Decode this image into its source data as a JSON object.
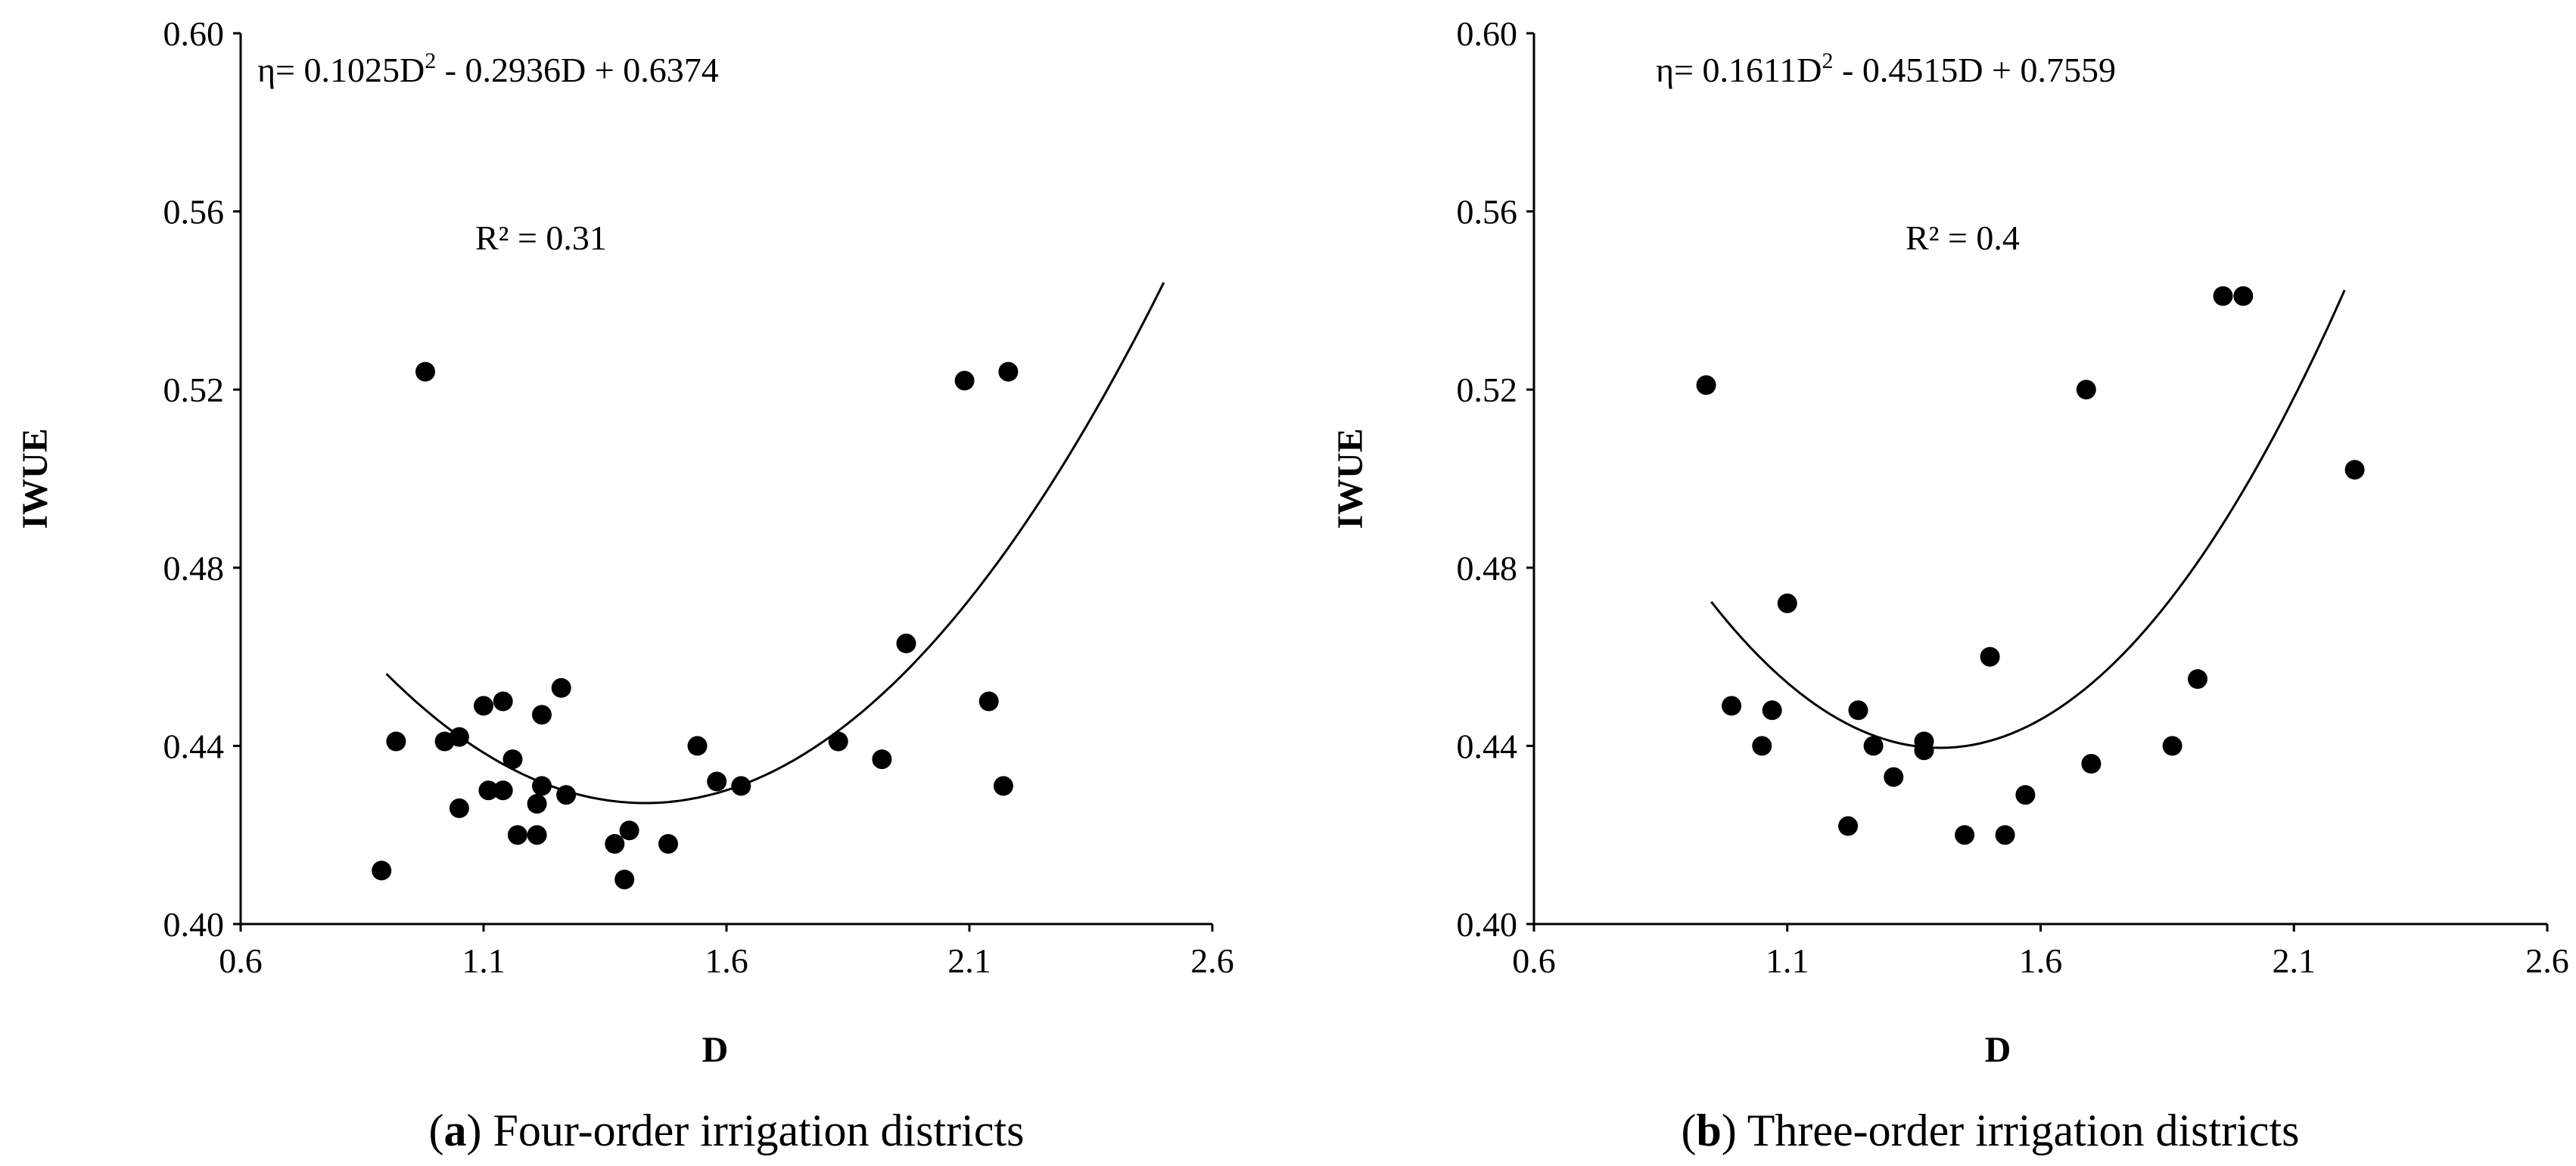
{
  "chart_data": [
    {
      "panel": "a",
      "type": "scatter",
      "caption_letter": "a",
      "caption_text": "Four-order irrigation districts",
      "xlabel": "D",
      "ylabel": "IWUE",
      "xlim": [
        0.6,
        2.6
      ],
      "ylim": [
        0.4,
        0.6
      ],
      "x_ticks": [
        "0.6",
        "1.1",
        "1.6",
        "2.1",
        "2.6"
      ],
      "y_ticks": [
        "0.40",
        "0.44",
        "0.48",
        "0.52",
        "0.56",
        "0.60"
      ],
      "equation": {
        "prefix": "η= 0.1025D",
        "sup": "2",
        "suffix": " - 0.2936D + 0.6374"
      },
      "r2_label": "R² = 0.31",
      "fit": {
        "a": 0.1025,
        "b": -0.2936,
        "c": 0.6374,
        "x_range": [
          0.9,
          2.5
        ]
      },
      "points": [
        [
          0.89,
          0.412
        ],
        [
          0.92,
          0.441
        ],
        [
          0.98,
          0.524
        ],
        [
          1.02,
          0.441
        ],
        [
          1.05,
          0.442
        ],
        [
          1.05,
          0.426
        ],
        [
          1.1,
          0.449
        ],
        [
          1.11,
          0.43
        ],
        [
          1.14,
          0.45
        ],
        [
          1.14,
          0.43
        ],
        [
          1.16,
          0.437
        ],
        [
          1.17,
          0.42
        ],
        [
          1.21,
          0.42
        ],
        [
          1.21,
          0.427
        ],
        [
          1.22,
          0.447
        ],
        [
          1.22,
          0.431
        ],
        [
          1.26,
          0.453
        ],
        [
          1.27,
          0.429
        ],
        [
          1.37,
          0.418
        ],
        [
          1.39,
          0.41
        ],
        [
          1.4,
          0.421
        ],
        [
          1.48,
          0.418
        ],
        [
          1.54,
          0.44
        ],
        [
          1.58,
          0.432
        ],
        [
          1.63,
          0.431
        ],
        [
          1.83,
          0.441
        ],
        [
          1.92,
          0.437
        ],
        [
          1.97,
          0.463
        ],
        [
          2.09,
          0.522
        ],
        [
          2.14,
          0.45
        ],
        [
          2.17,
          0.431
        ],
        [
          2.18,
          0.524
        ]
      ]
    },
    {
      "panel": "b",
      "type": "scatter",
      "caption_letter": "b",
      "caption_text": "Three-order irrigation districts",
      "xlabel": "D",
      "ylabel": "IWUE",
      "xlim": [
        0.6,
        2.6
      ],
      "ylim": [
        0.4,
        0.6
      ],
      "x_ticks": [
        "0.6",
        "1.1",
        "1.6",
        "2.1",
        "2.6"
      ],
      "y_ticks": [
        "0.40",
        "0.44",
        "0.48",
        "0.52",
        "0.56",
        "0.60"
      ],
      "equation": {
        "prefix": "η= 0.1611D",
        "sup": "2",
        "suffix": " - 0.4515D + 0.7559"
      },
      "r2_label": "R² = 0.4",
      "fit": {
        "a": 0.1611,
        "b": -0.4515,
        "c": 0.7559,
        "x_range": [
          0.95,
          2.2
        ]
      },
      "points": [
        [
          0.94,
          0.521
        ],
        [
          0.99,
          0.449
        ],
        [
          1.05,
          0.44
        ],
        [
          1.07,
          0.448
        ],
        [
          1.1,
          0.472
        ],
        [
          1.22,
          0.422
        ],
        [
          1.24,
          0.448
        ],
        [
          1.27,
          0.44
        ],
        [
          1.31,
          0.433
        ],
        [
          1.37,
          0.441
        ],
        [
          1.37,
          0.439
        ],
        [
          1.45,
          0.42
        ],
        [
          1.5,
          0.46
        ],
        [
          1.53,
          0.42
        ],
        [
          1.57,
          0.429
        ],
        [
          1.69,
          0.52
        ],
        [
          1.7,
          0.436
        ],
        [
          1.86,
          0.44
        ],
        [
          1.91,
          0.455
        ],
        [
          1.96,
          0.541
        ],
        [
          2.0,
          0.541
        ],
        [
          2.22,
          0.502
        ]
      ]
    }
  ]
}
